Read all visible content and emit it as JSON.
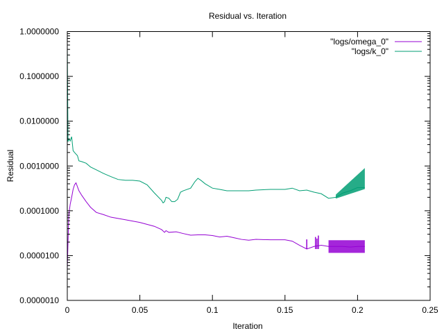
{
  "chart_data": {
    "type": "line",
    "title": "Residual vs. Iteration",
    "xlabel": "Iteration",
    "ylabel": "Residual",
    "xlim": [
      0,
      0.25
    ],
    "ylim": [
      1e-06,
      1
    ],
    "yscale": "log",
    "grid": false,
    "legend_position": "top-right",
    "x_ticks": [
      "0",
      "0.05",
      "0.1",
      "0.15",
      "0.2",
      "0.25"
    ],
    "x_tick_values": [
      0,
      0.05,
      0.1,
      0.15,
      0.2,
      0.25
    ],
    "y_ticks": [
      "0.0000010",
      "0.0000100",
      "0.0001000",
      "0.0010000",
      "0.0100000",
      "0.1000000",
      "1.0000000"
    ],
    "y_tick_values": [
      1e-06,
      1e-05,
      0.0001,
      0.001,
      0.01,
      0.1,
      1
    ],
    "series": [
      {
        "name": "\"logs/omega_0\"",
        "color": "#9400D3",
        "x": [
          0,
          0.001,
          0.002,
          0.003,
          0.004,
          0.005,
          0.006,
          0.008,
          0.01,
          0.013,
          0.016,
          0.02,
          0.025,
          0.03,
          0.04,
          0.05,
          0.06,
          0.065,
          0.067,
          0.068,
          0.07,
          0.075,
          0.08,
          0.085,
          0.09,
          0.095,
          0.1,
          0.105,
          0.11,
          0.115,
          0.12,
          0.125,
          0.13,
          0.14,
          0.15,
          0.155,
          0.16,
          0.165,
          0.17,
          0.175,
          0.18,
          0.185,
          0.19,
          0.195,
          0.2,
          0.205
        ],
        "y": [
          5e-06,
          8e-05,
          0.00014,
          0.0002,
          0.0003,
          0.00038,
          0.00042,
          0.00028,
          0.00022,
          0.00016,
          0.00012,
          9.2e-05,
          8.2e-05,
          7.2e-05,
          6.3e-05,
          5.5e-05,
          4.5e-05,
          3.8e-05,
          3.3e-05,
          3.6e-05,
          3.3e-05,
          3.4e-05,
          3.1e-05,
          2.85e-05,
          2.9e-05,
          2.9e-05,
          2.8e-05,
          2.6e-05,
          2.7e-05,
          2.5e-05,
          2.3e-05,
          2.2e-05,
          2.3e-05,
          2.25e-05,
          2.25e-05,
          2.1e-05,
          1.7e-05,
          1.4e-05,
          1.6e-05,
          1.7e-05,
          1.6e-05,
          1.6e-05,
          1.6e-05,
          1.55e-05,
          1.6e-05,
          1.6e-05
        ],
        "band": {
          "x_start": 0.18,
          "x_end": 0.205,
          "low": 1.15e-05,
          "high": 2.2e-05
        },
        "spikes": [
          {
            "x": 0.165,
            "low": 1.4e-05,
            "high": 2.3e-05
          },
          {
            "x": 0.171,
            "low": 1.4e-05,
            "high": 2.6e-05
          },
          {
            "x": 0.173,
            "low": 1.4e-05,
            "high": 2.8e-05
          },
          {
            "x": 0.172,
            "low": 1.4e-05,
            "high": 2.4e-05
          }
        ]
      },
      {
        "name": "\"logs/k_0\"",
        "color": "#009E73",
        "x": [
          0,
          0.0005,
          0.001,
          0.002,
          0.003,
          0.004,
          0.005,
          0.007,
          0.008,
          0.01,
          0.013,
          0.016,
          0.02,
          0.025,
          0.03,
          0.035,
          0.04,
          0.045,
          0.05,
          0.055,
          0.06,
          0.065,
          0.066,
          0.067,
          0.068,
          0.07,
          0.072,
          0.074,
          0.076,
          0.078,
          0.08,
          0.085,
          0.088,
          0.09,
          0.092,
          0.095,
          0.1,
          0.105,
          0.11,
          0.115,
          0.12,
          0.125,
          0.13,
          0.14,
          0.15,
          0.155,
          0.16,
          0.165,
          0.17,
          0.175,
          0.18,
          0.185,
          0.19,
          0.195,
          0.2,
          0.205
        ],
        "y": [
          0.5,
          0.0035,
          0.004,
          0.0036,
          0.0045,
          0.0022,
          0.002,
          0.0017,
          0.0013,
          0.00125,
          0.00115,
          0.00095,
          0.00082,
          0.00068,
          0.00058,
          0.0005,
          0.00048,
          0.00048,
          0.00046,
          0.00038,
          0.00025,
          0.00017,
          0.00015,
          0.00016,
          0.0002,
          0.00019,
          0.00016,
          0.00016,
          0.00018,
          0.00026,
          0.00028,
          0.00032,
          0.00045,
          0.00053,
          0.00048,
          0.0004,
          0.00032,
          0.0003,
          0.00028,
          0.00028,
          0.00028,
          0.00028,
          0.00029,
          0.0003,
          0.0003,
          0.00032,
          0.00028,
          0.00029,
          0.00026,
          0.00024,
          0.00019,
          0.0002,
          0.00025,
          0.00028,
          0.00033,
          0.00033
        ],
        "band": {
          "x_start": 0.185,
          "x_end": 0.205,
          "low": 0.00017,
          "high": 0.0009
        }
      }
    ]
  }
}
